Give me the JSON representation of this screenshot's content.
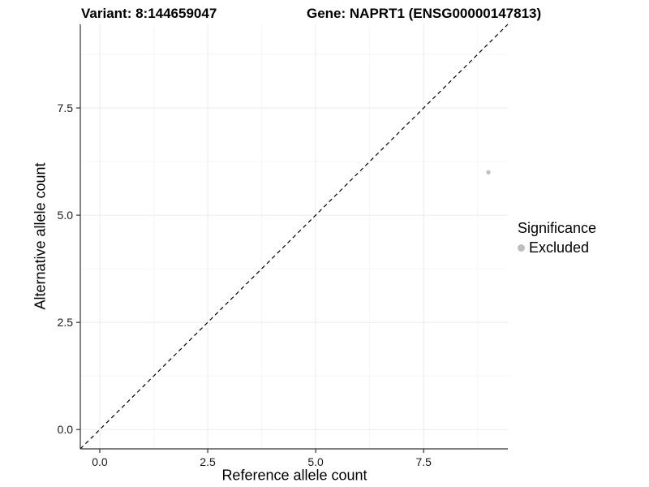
{
  "chart_data": {
    "type": "scatter",
    "title_left": "Variant: 8:144659047",
    "title_right": "Gene: NAPRT1 (ENSG00000147813)",
    "xlabel": "Reference allele count",
    "ylabel": "Alternative allele count",
    "xlim": [
      -0.45,
      9.45
    ],
    "ylim": [
      -0.45,
      9.45
    ],
    "x_ticks": [
      {
        "v": 0,
        "label": "0.0"
      },
      {
        "v": 2.5,
        "label": "2.5"
      },
      {
        "v": 5,
        "label": "5.0"
      },
      {
        "v": 7.5,
        "label": "7.5"
      }
    ],
    "y_ticks": [
      {
        "v": 0,
        "label": "0.0"
      },
      {
        "v": 2.5,
        "label": "2.5"
      },
      {
        "v": 5,
        "label": "5.0"
      },
      {
        "v": 7.5,
        "label": "7.5"
      }
    ],
    "x_minor": [
      1.25,
      3.75,
      6.25,
      8.75
    ],
    "y_minor": [
      1.25,
      3.75,
      6.25,
      8.75
    ],
    "grid": true,
    "series": [
      {
        "name": "Excluded",
        "color": "#BEBEBE",
        "points": [
          {
            "x": 9,
            "y": 6
          }
        ]
      }
    ],
    "reference_line": {
      "slope": 1,
      "intercept": 0,
      "style": "dashed",
      "color": "#000000"
    },
    "legend": {
      "position": "right",
      "title": "Significance",
      "items": [
        {
          "label": "Excluded",
          "color": "#BEBEBE"
        }
      ]
    }
  }
}
